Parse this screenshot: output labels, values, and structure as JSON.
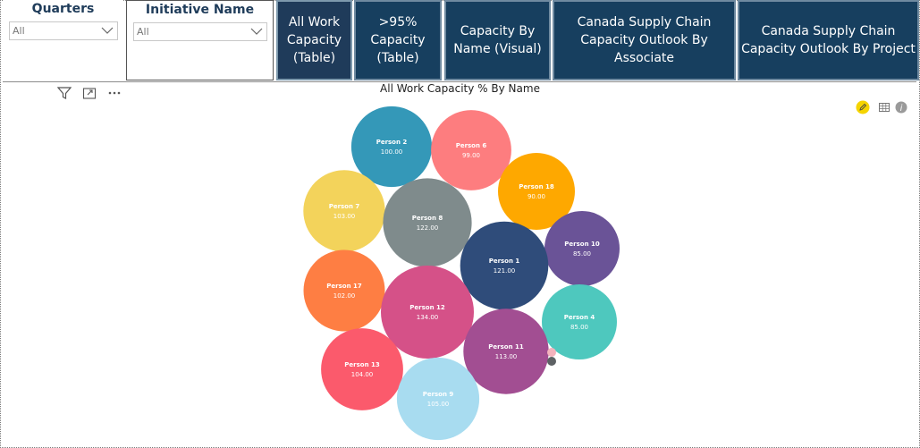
{
  "slicers": [
    {
      "title": "Quarters",
      "value": "All"
    },
    {
      "title": "Initiative Name",
      "value": "All"
    }
  ],
  "nav_buttons": [
    {
      "label_lines": [
        "All Work",
        "Capacity",
        "(Table)"
      ]
    },
    {
      "label_lines": [
        ">95%",
        "Capacity",
        "(Table)"
      ]
    },
    {
      "label_lines": [
        "Capacity By",
        "Name (Visual)"
      ]
    },
    {
      "label_lines": [
        "Canada Supply Chain",
        "Capacity Outlook By",
        "Associate"
      ]
    },
    {
      "label_lines": [
        "Canada Supply Chain",
        "Capacity Outlook By Project"
      ]
    }
  ],
  "visual": {
    "title": "All Work Capacity % By Name",
    "header_icons": [
      "filter-icon",
      "focus-mode-icon",
      "more-options-icon"
    ],
    "side_icons": [
      "pencil-icon",
      "table-icon",
      "info-icon"
    ]
  },
  "chart_data": {
    "type": "bubble",
    "title": "All Work Capacity % By Name",
    "points": [
      {
        "name": "Person 2",
        "value": 100.0,
        "color": "#3498b8"
      },
      {
        "name": "Person 6",
        "value": 99.0,
        "color": "#fd7d7f"
      },
      {
        "name": "Person 18",
        "value": 90.0,
        "color": "#fea800"
      },
      {
        "name": "Person 7",
        "value": 103.0,
        "color": "#f3d35b"
      },
      {
        "name": "Person 8",
        "value": 122.0,
        "color": "#7f8b8c"
      },
      {
        "name": "Person 10",
        "value": 85.0,
        "color": "#6a5397"
      },
      {
        "name": "Person 1",
        "value": 121.0,
        "color": "#2f4c7a"
      },
      {
        "name": "Person 17",
        "value": 102.0,
        "color": "#fe7e43"
      },
      {
        "name": "Person 12",
        "value": 134.0,
        "color": "#d55188"
      },
      {
        "name": "Person 4",
        "value": 85.0,
        "color": "#4ec8be"
      },
      {
        "name": "Person 11",
        "value": 113.0,
        "color": "#a24e92"
      },
      {
        "name": "Person 13",
        "value": 104.0,
        "color": "#fb5a6c"
      },
      {
        "name": "Person 9",
        "value": 105.0,
        "color": "#a8dcf0"
      }
    ],
    "value_format": "0.00"
  }
}
